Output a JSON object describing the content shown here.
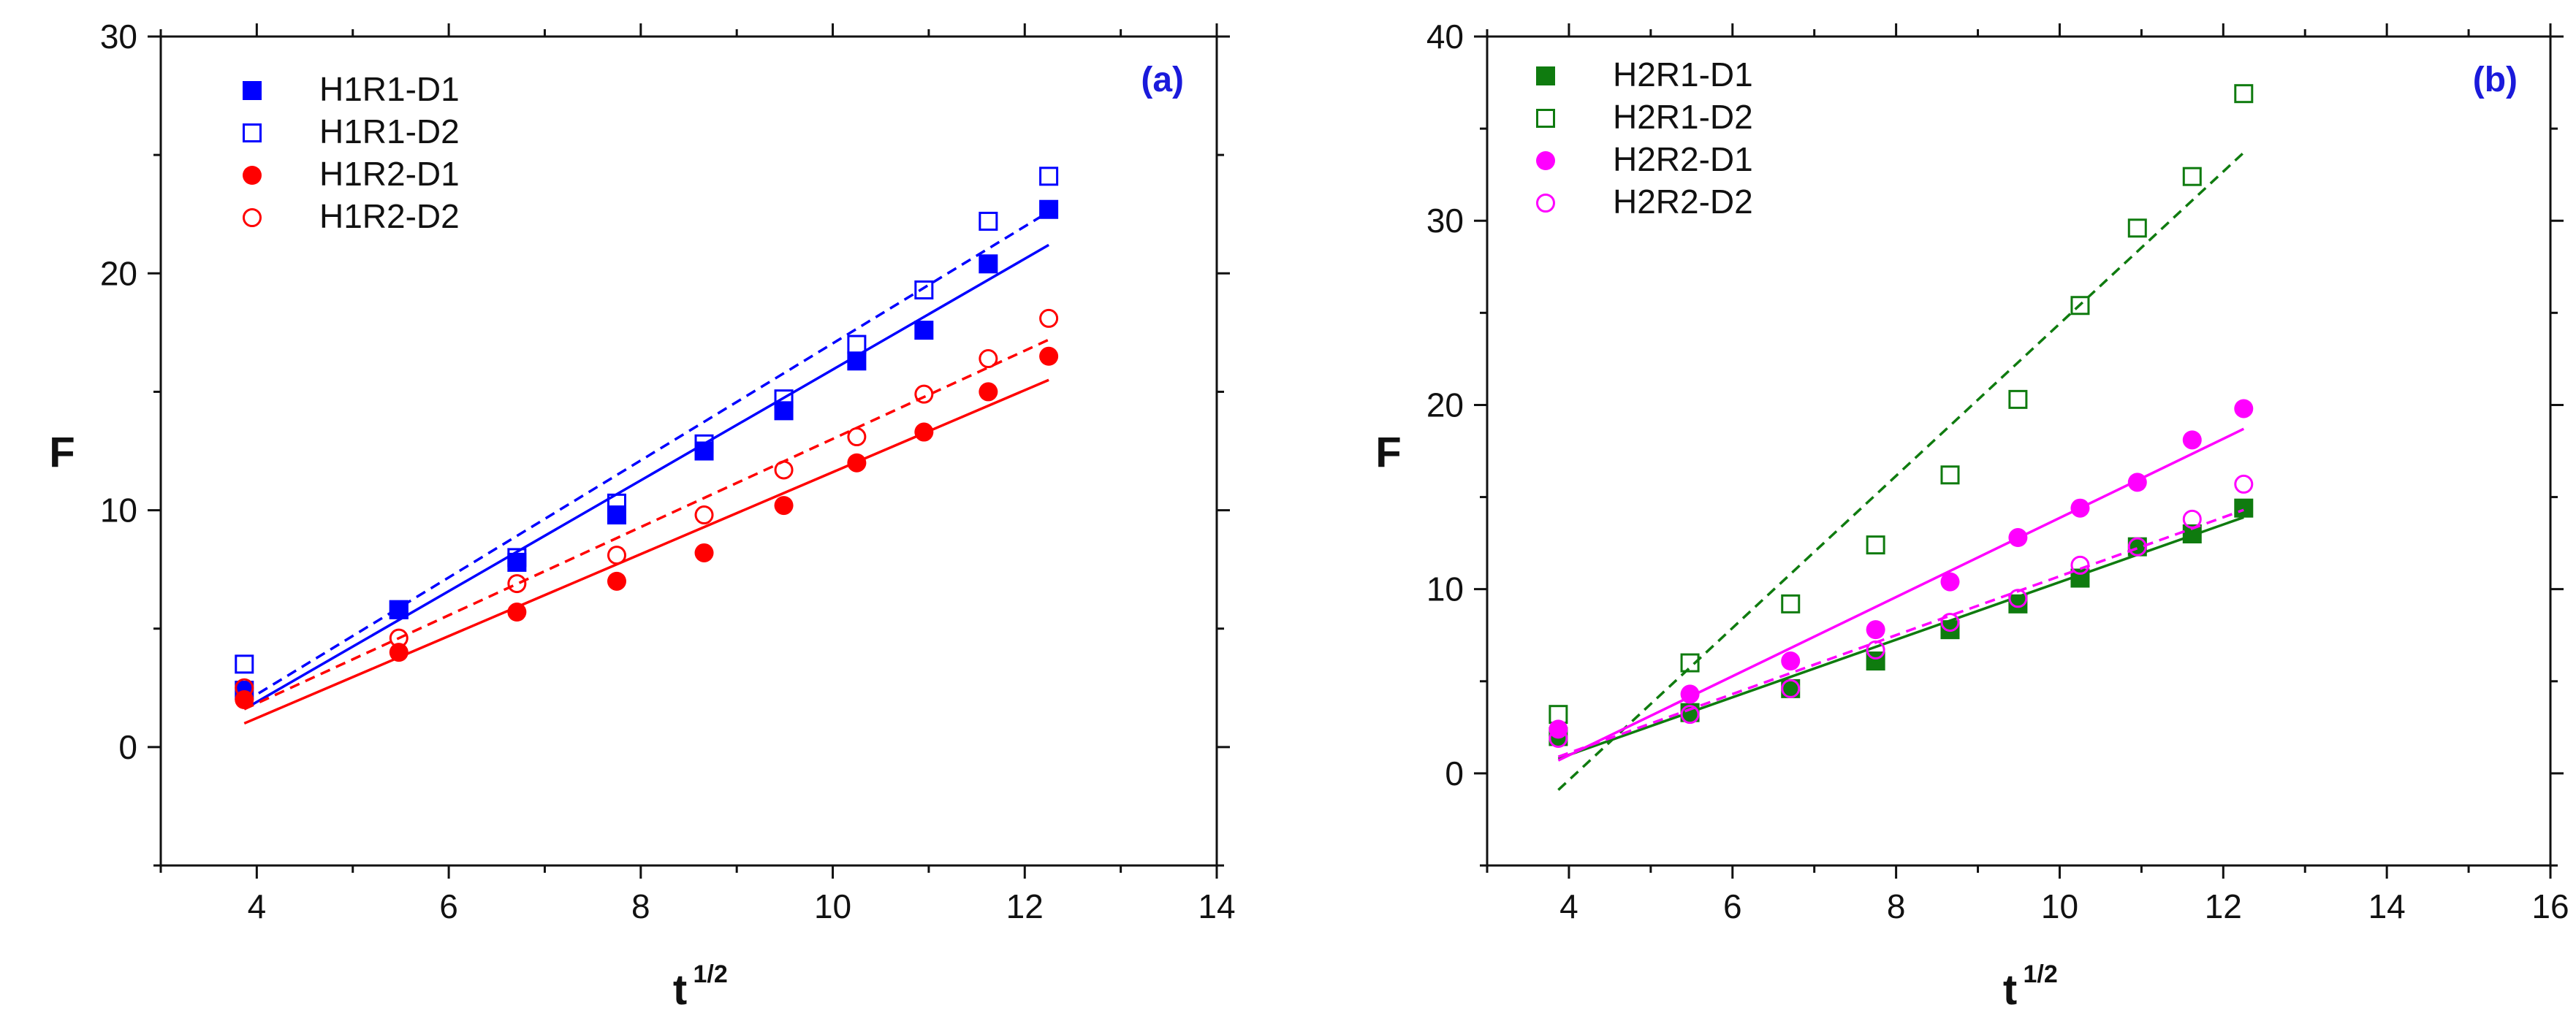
{
  "chart_data": [
    {
      "type": "scatter",
      "panel_label": "(a)",
      "panel_label_color": "#1a1adb",
      "xlabel": "t",
      "xlabel_superscript": "1/2",
      "ylabel": "F",
      "xlim": [
        3,
        14
      ],
      "ylim": [
        -5,
        30
      ],
      "xticks": [
        4,
        6,
        8,
        10,
        12,
        14
      ],
      "yticks": [
        0,
        10,
        20,
        30
      ],
      "legend_position": "top-left",
      "series": [
        {
          "name": "H1R1-D1",
          "color": "#0000ff",
          "marker": "square",
          "filled": true,
          "x": [
            3.87,
            5.48,
            6.71,
            7.75,
            8.66,
            9.49,
            10.25,
            10.95,
            11.62,
            12.25
          ],
          "y": [
            2.4,
            5.8,
            7.8,
            9.8,
            12.5,
            14.2,
            16.3,
            17.6,
            20.4,
            22.7
          ],
          "fit": {
            "x": [
              3.87,
              12.25
            ],
            "y": [
              1.6,
              21.2
            ],
            "style": "solid"
          }
        },
        {
          "name": "H1R1-D2",
          "color": "#0000ff",
          "marker": "square",
          "filled": false,
          "x": [
            3.87,
            5.48,
            6.71,
            7.75,
            8.66,
            9.49,
            10.25,
            10.95,
            11.62,
            12.25
          ],
          "y": [
            3.5,
            5.8,
            8.0,
            10.3,
            12.8,
            14.7,
            17.0,
            19.3,
            22.2,
            24.1
          ],
          "fit": {
            "x": [
              3.87,
              12.25
            ],
            "y": [
              1.9,
              22.6
            ],
            "style": "dashed"
          }
        },
        {
          "name": "H1R2-D1",
          "color": "#ff0000",
          "marker": "circle",
          "filled": true,
          "x": [
            3.87,
            5.48,
            6.71,
            7.75,
            8.66,
            9.49,
            10.25,
            10.95,
            11.62,
            12.25
          ],
          "y": [
            2.0,
            4.0,
            5.7,
            7.0,
            8.2,
            10.2,
            12.0,
            13.3,
            15.0,
            16.5
          ],
          "fit": {
            "x": [
              3.87,
              12.25
            ],
            "y": [
              1.0,
              15.5
            ],
            "style": "solid"
          }
        },
        {
          "name": "H1R2-D2",
          "color": "#ff0000",
          "marker": "circle",
          "filled": false,
          "x": [
            3.87,
            5.48,
            6.71,
            7.75,
            8.66,
            9.49,
            10.25,
            10.95,
            11.62,
            12.25
          ],
          "y": [
            2.5,
            4.6,
            6.9,
            8.1,
            9.8,
            11.7,
            13.1,
            14.9,
            16.4,
            18.1
          ],
          "fit": {
            "x": [
              3.87,
              12.25
            ],
            "y": [
              1.6,
              17.2
            ],
            "style": "dashed"
          }
        }
      ]
    },
    {
      "type": "scatter",
      "panel_label": "(b)",
      "panel_label_color": "#1a1adb",
      "xlabel": "t",
      "xlabel_superscript": "1/2",
      "ylabel": "F",
      "xlim": [
        3,
        16
      ],
      "ylim": [
        -5,
        40
      ],
      "xticks": [
        4,
        6,
        8,
        10,
        12,
        14,
        16
      ],
      "yticks": [
        0,
        10,
        20,
        30,
        40
      ],
      "legend_position": "top-left",
      "series": [
        {
          "name": "H2R1-D1",
          "color": "#0f7b0f",
          "marker": "square",
          "filled": true,
          "x": [
            3.87,
            5.48,
            6.71,
            7.75,
            8.66,
            9.49,
            10.25,
            10.95,
            11.62,
            12.25
          ],
          "y": [
            2.0,
            3.3,
            4.6,
            6.1,
            7.8,
            9.2,
            10.6,
            12.3,
            13.0,
            14.4
          ],
          "fit": {
            "x": [
              3.87,
              12.25
            ],
            "y": [
              0.8,
              13.9
            ],
            "style": "solid"
          }
        },
        {
          "name": "H2R1-D2",
          "color": "#0f7b0f",
          "marker": "square",
          "filled": false,
          "x": [
            3.87,
            5.48,
            6.71,
            7.75,
            8.66,
            9.49,
            10.25,
            10.95,
            11.62,
            12.25
          ],
          "y": [
            3.2,
            6.0,
            9.2,
            12.4,
            16.2,
            20.3,
            25.4,
            29.6,
            32.4,
            36.9
          ],
          "fit": {
            "x": [
              3.87,
              12.25
            ],
            "y": [
              -0.9,
              33.7
            ],
            "style": "dashed"
          }
        },
        {
          "name": "H2R2-D1",
          "color": "#ff00ff",
          "marker": "circle",
          "filled": true,
          "x": [
            3.87,
            5.48,
            6.71,
            7.75,
            8.66,
            9.49,
            10.25,
            10.95,
            11.62,
            12.25
          ],
          "y": [
            2.4,
            4.3,
            6.1,
            7.8,
            10.4,
            12.8,
            14.4,
            15.8,
            18.1,
            19.8
          ],
          "fit": {
            "x": [
              3.87,
              12.25
            ],
            "y": [
              0.7,
              18.7
            ],
            "style": "solid"
          }
        },
        {
          "name": "H2R2-D2",
          "color": "#ff00ff",
          "marker": "circle",
          "filled": false,
          "x": [
            3.87,
            5.48,
            6.71,
            7.75,
            8.66,
            9.49,
            10.25,
            10.95,
            11.62,
            12.25
          ],
          "y": [
            1.9,
            3.2,
            4.6,
            6.7,
            8.2,
            9.5,
            11.3,
            12.3,
            13.8,
            15.7
          ],
          "fit": {
            "x": [
              3.87,
              12.25
            ],
            "y": [
              0.9,
              14.3
            ],
            "style": "dashed"
          }
        }
      ]
    }
  ]
}
